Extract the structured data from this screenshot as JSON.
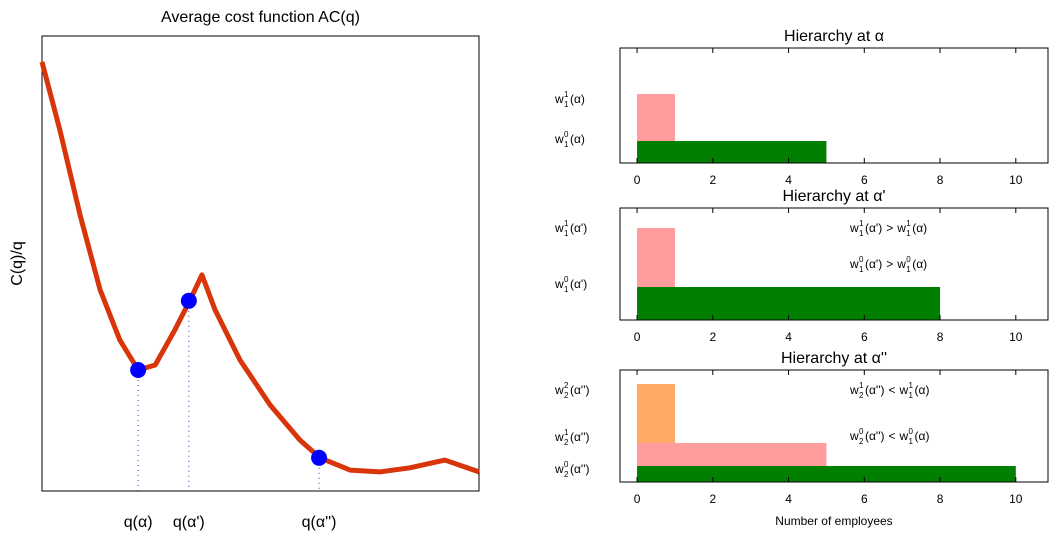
{
  "chart_data": [
    {
      "type": "line",
      "title": "Average cost function AC(q)",
      "ylabel": "C(q)/q",
      "xlim": [
        0,
        100
      ],
      "ylim": [
        0,
        100
      ],
      "xticks": [
        {
          "value": 22.0,
          "label": "q(α)"
        },
        {
          "value": 33.6,
          "label": "q(α')"
        },
        {
          "value": 63.4,
          "label": "q(α'')"
        }
      ],
      "series": [
        {
          "style": "line",
          "color": "#d8350a",
          "x": [
            0,
            4.1,
            8.7,
            13.3,
            17.8,
            22.0,
            25.9,
            30.4,
            33.9,
            36.6,
            39.6,
            45.3,
            52.2,
            59.0,
            63.6,
            70.5,
            77.3,
            84.2,
            92.2,
            100
          ],
          "values": [
            94.3,
            79.3,
            60.7,
            44.2,
            33.2,
            26.6,
            27.7,
            35.4,
            42.0,
            47.5,
            39.8,
            28.8,
            18.9,
            11.2,
            7.3,
            4.6,
            4.2,
            5.1,
            6.8,
            4.2
          ]
        },
        {
          "style": "marker",
          "color": "#0000ff",
          "x": [
            22.0,
            33.6,
            63.4
          ],
          "values": [
            26.6,
            41.8,
            7.3
          ]
        }
      ]
    },
    {
      "type": "hbar",
      "title": "Hierarchy at α",
      "xlim": [
        -0.45,
        10.85
      ],
      "xticks": [
        0,
        2,
        4,
        6,
        8,
        10
      ],
      "categories": [
        {
          "w": "w",
          "sup": "0",
          "sub": "1",
          "arg": "(α)"
        },
        {
          "w": "w",
          "sup": "1",
          "sub": "1",
          "arg": "(α)"
        }
      ],
      "values": [
        5,
        1
      ],
      "colors": [
        "#007f00",
        "#ff9c9c"
      ],
      "annotations": []
    },
    {
      "type": "hbar",
      "title": "Hierarchy at α'",
      "xlim": [
        -0.45,
        10.85
      ],
      "xticks": [
        0,
        2,
        4,
        6,
        8,
        10
      ],
      "categories": [
        {
          "w": "w",
          "sup": "0",
          "sub": "1",
          "arg": "(α')"
        },
        {
          "w": "w",
          "sup": "1",
          "sub": "1",
          "arg": "(α')"
        }
      ],
      "values": [
        8,
        1
      ],
      "colors": [
        "#007f00",
        "#ff9c9c"
      ],
      "annotations": [
        {
          "left": {
            "w": "w",
            "sup": "1",
            "sub": "1",
            "arg": "(α')"
          },
          "op": ">",
          "right": {
            "w": "w",
            "sup": "1",
            "sub": "1",
            "arg": "(α)"
          }
        },
        {
          "left": {
            "w": "w",
            "sup": "0",
            "sub": "1",
            "arg": "(α')"
          },
          "op": ">",
          "right": {
            "w": "w",
            "sup": "0",
            "sub": "1",
            "arg": "(α)"
          }
        }
      ]
    },
    {
      "type": "hbar",
      "title": "Hierarchy at α''",
      "xlim": [
        -0.45,
        10.85
      ],
      "xticks": [
        0,
        2,
        4,
        6,
        8,
        10
      ],
      "xlabel": "Number of employees",
      "categories": [
        {
          "w": "w",
          "sup": "0",
          "sub": "2",
          "arg": "(α'')"
        },
        {
          "w": "w",
          "sup": "1",
          "sub": "2",
          "arg": "(α'')"
        },
        {
          "w": "w",
          "sup": "2",
          "sub": "2",
          "arg": "(α'')"
        }
      ],
      "values": [
        10,
        5,
        1
      ],
      "colors": [
        "#007f00",
        "#ff9c9c",
        "#ffaa66"
      ],
      "annotations": [
        {
          "left": {
            "w": "w",
            "sup": "1",
            "sub": "2",
            "arg": "(α'')"
          },
          "op": "<",
          "right": {
            "w": "w",
            "sup": "1",
            "sub": "1",
            "arg": "(α)"
          }
        },
        {
          "left": {
            "w": "w",
            "sup": "0",
            "sub": "2",
            "arg": "(α'')"
          },
          "op": "<",
          "right": {
            "w": "w",
            "sup": "0",
            "sub": "1",
            "arg": "(α)"
          }
        }
      ]
    }
  ]
}
